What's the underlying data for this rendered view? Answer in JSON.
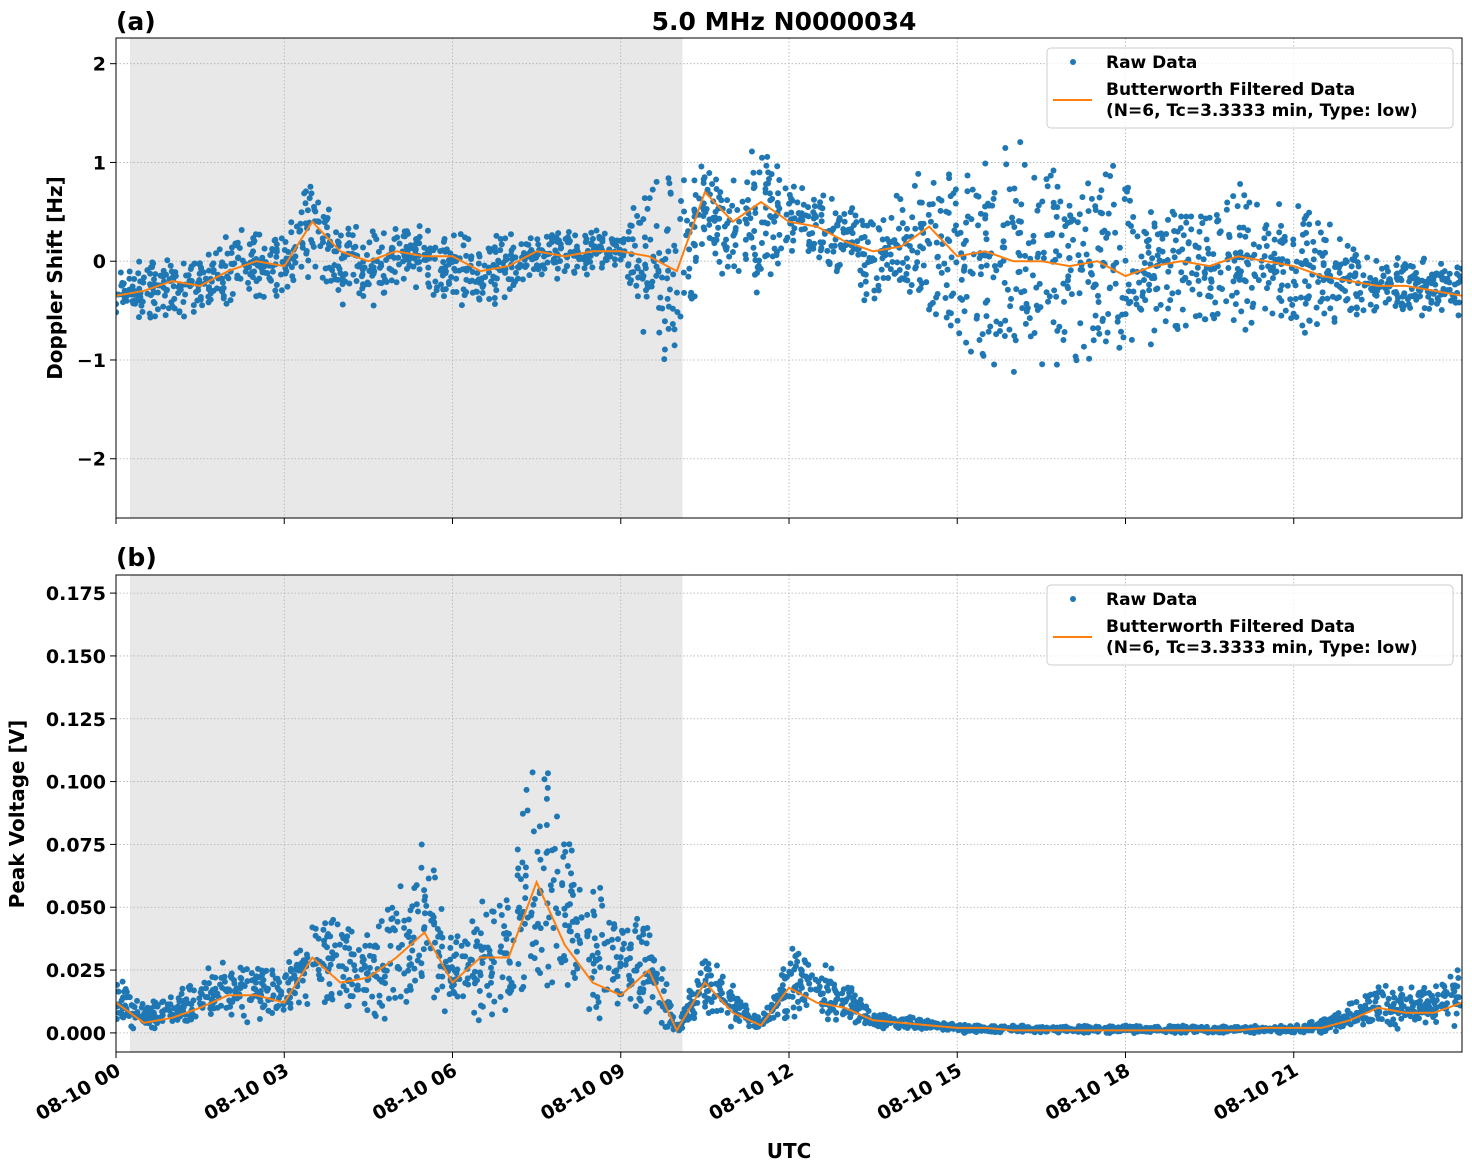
{
  "chart_data": [
    {
      "type": "scatter+line",
      "panel_label": "(a)",
      "title": "5.0 MHz N0000034",
      "ylabel": "Doppler Shift [Hz]",
      "xlabel": "",
      "ylim": [
        -2.6,
        2.26
      ],
      "yticks": [
        -2,
        -1,
        0,
        1,
        2
      ],
      "ytick_labels": [
        "−2",
        "−1",
        "0",
        "1",
        "2"
      ],
      "grid": true,
      "legend_placement": "top-right",
      "shaded_region": {
        "start": "08-10 00:15",
        "end": "08-10 10:06",
        "color": "#e8e8e8"
      },
      "series": [
        {
          "name": "Raw Data",
          "kind": "scatter",
          "color": "#1f77b4",
          "raw_max": [
            0.0,
            0.05,
            0.15,
            0.1,
            0.25,
            0.35,
            0.3,
            0.9,
            0.45,
            0.35,
            0.4,
            0.35,
            0.35,
            0.25,
            0.3,
            0.25,
            0.35,
            0.3,
            0.3,
            0.9,
            0.8,
            1.0,
            0.9,
            1.3,
            0.8,
            0.7,
            0.6,
            0.6,
            0.7,
            1.0,
            1.0,
            1.2,
            1.3,
            1.2,
            1.1,
            1.1,
            0.9,
            0.7,
            0.7,
            0.7,
            0.8,
            0.7,
            0.6,
            0.4,
            0.2,
            0.05,
            0.05,
            0.0,
            0.0
          ],
          "raw_min": [
            -0.7,
            -0.65,
            -0.55,
            -0.6,
            -0.45,
            -0.35,
            -0.4,
            -0.1,
            -0.45,
            -0.5,
            -0.25,
            -0.3,
            -0.45,
            -0.5,
            -0.35,
            -0.1,
            -0.25,
            -0.1,
            -0.1,
            -1.0,
            -1.2,
            0.1,
            -0.3,
            -0.4,
            0.1,
            0.0,
            -0.2,
            -0.5,
            -0.4,
            -0.5,
            -1.0,
            -1.1,
            -1.3,
            -1.2,
            -1.1,
            -1.2,
            -1.2,
            -0.8,
            -0.8,
            -0.8,
            -0.8,
            -0.7,
            -0.7,
            -0.8,
            -0.6,
            -0.5,
            -0.5,
            -0.55,
            -0.65
          ]
        },
        {
          "name": "Butterworth Filtered Data",
          "name_line2": "(N=6, Tc=3.3333 min, Type: low)",
          "kind": "line",
          "color": "#ff7f0e",
          "values": [
            -0.35,
            -0.3,
            -0.2,
            -0.25,
            -0.1,
            0.0,
            -0.05,
            0.4,
            0.1,
            0.0,
            0.1,
            0.05,
            0.05,
            -0.1,
            -0.05,
            0.1,
            0.05,
            0.1,
            0.1,
            0.05,
            -0.1,
            0.7,
            0.4,
            0.6,
            0.4,
            0.35,
            0.2,
            0.1,
            0.15,
            0.35,
            0.05,
            0.1,
            0.0,
            0.0,
            -0.05,
            0.0,
            -0.15,
            -0.05,
            0.0,
            -0.05,
            0.05,
            0.0,
            -0.05,
            -0.15,
            -0.2,
            -0.25,
            -0.25,
            -0.3,
            -0.35
          ]
        }
      ]
    },
    {
      "type": "scatter+line",
      "panel_label": "(b)",
      "title": "",
      "ylabel": "Peak Voltage [V]",
      "xlabel": "UTC",
      "ylim": [
        -0.0076,
        0.1822
      ],
      "yticks": [
        0,
        0.025,
        0.05,
        0.075,
        0.1,
        0.125,
        0.15,
        0.175
      ],
      "ytick_labels": [
        "0.000",
        "0.025",
        "0.050",
        "0.075",
        "0.100",
        "0.125",
        "0.150",
        "0.175"
      ],
      "grid": true,
      "legend_placement": "top-right",
      "shaded_region": {
        "start": "08-10 00:15",
        "end": "08-10 10:06",
        "color": "#e8e8e8"
      },
      "series": [
        {
          "name": "Raw Data",
          "kind": "scatter",
          "color": "#1f77b4",
          "raw_max": [
            0.03,
            0.012,
            0.015,
            0.025,
            0.028,
            0.03,
            0.025,
            0.05,
            0.045,
            0.04,
            0.055,
            0.08,
            0.04,
            0.05,
            0.06,
            0.13,
            0.08,
            0.06,
            0.05,
            0.05,
            0.003,
            0.035,
            0.02,
            0.005,
            0.035,
            0.03,
            0.025,
            0.008,
            0.007,
            0.005,
            0.004,
            0.003,
            0.003,
            0.003,
            0.003,
            0.003,
            0.003,
            0.003,
            0.003,
            0.003,
            0.003,
            0.003,
            0.003,
            0.005,
            0.012,
            0.02,
            0.018,
            0.02,
            0.03
          ],
          "raw_min": [
            0.003,
            0.001,
            0.002,
            0.004,
            0.005,
            0.005,
            0.004,
            0.008,
            0.006,
            0.005,
            0.008,
            0.01,
            0.005,
            0.006,
            0.006,
            0.01,
            0.008,
            0.005,
            0.004,
            0.005,
            0,
            0.004,
            0.002,
            0.001,
            0.005,
            0.004,
            0.003,
            0.002,
            0.001,
            0.001,
            0,
            0,
            0,
            0,
            0,
            0,
            0,
            0,
            0,
            0,
            0,
            0,
            0,
            0,
            0.001,
            0.002,
            0.002,
            0.002,
            0.003
          ]
        },
        {
          "name": "Butterworth Filtered Data",
          "name_line2": "(N=6, Tc=3.3333 min, Type: low)",
          "kind": "line",
          "color": "#ff7f0e",
          "values": [
            0.012,
            0.004,
            0.006,
            0.01,
            0.015,
            0.015,
            0.012,
            0.03,
            0.02,
            0.022,
            0.03,
            0.04,
            0.02,
            0.03,
            0.03,
            0.06,
            0.035,
            0.02,
            0.015,
            0.025,
            0.001,
            0.02,
            0.008,
            0.003,
            0.018,
            0.012,
            0.01,
            0.005,
            0.004,
            0.003,
            0.002,
            0.002,
            0.001,
            0.001,
            0.001,
            0.001,
            0.001,
            0.001,
            0.001,
            0.001,
            0.001,
            0.002,
            0.002,
            0.002,
            0.005,
            0.01,
            0.008,
            0.008,
            0.012
          ]
        }
      ]
    }
  ],
  "x": [
    "08-10 00:00",
    "08-10 00:30",
    "08-10 01:00",
    "08-10 01:30",
    "08-10 02:00",
    "08-10 02:30",
    "08-10 03:00",
    "08-10 03:30",
    "08-10 04:00",
    "08-10 04:30",
    "08-10 05:00",
    "08-10 05:30",
    "08-10 06:00",
    "08-10 06:30",
    "08-10 07:00",
    "08-10 07:30",
    "08-10 08:00",
    "08-10 08:30",
    "08-10 09:00",
    "08-10 09:30",
    "08-10 10:00",
    "08-10 10:30",
    "08-10 11:00",
    "08-10 11:30",
    "08-10 12:00",
    "08-10 12:30",
    "08-10 13:00",
    "08-10 13:30",
    "08-10 14:00",
    "08-10 14:30",
    "08-10 15:00",
    "08-10 15:30",
    "08-10 16:00",
    "08-10 16:30",
    "08-10 17:00",
    "08-10 17:30",
    "08-10 18:00",
    "08-10 18:30",
    "08-10 19:00",
    "08-10 19:30",
    "08-10 20:00",
    "08-10 20:30",
    "08-10 21:00",
    "08-10 21:30",
    "08-10 22:00",
    "08-10 22:30",
    "08-10 23:00",
    "08-10 23:30",
    "08-11 00:00"
  ],
  "xlim": [
    "08-10 00:00",
    "08-11 00:00"
  ],
  "xtick_labels": [
    "08-10 00",
    "08-10 03",
    "08-10 06",
    "08-10 09",
    "08-10 12",
    "08-10 15",
    "08-10 18",
    "08-10 21"
  ]
}
